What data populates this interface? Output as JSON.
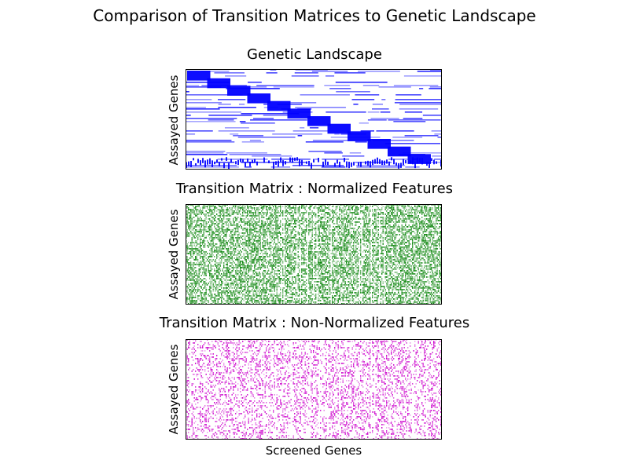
{
  "chart_data": {
    "title": "Comparison of Transition Matrices to Genetic Landscape",
    "panels": [
      {
        "type": "heatmap",
        "title": "Genetic Landscape",
        "ylabel": "Assayed Genes",
        "xlabel": "",
        "color": "#0000ff",
        "pattern": "block-diagonal with horizontal bands",
        "blocks": 12
      },
      {
        "type": "heatmap",
        "title": "Transition Matrix : Normalized Features",
        "ylabel": "Assayed Genes",
        "xlabel": "",
        "color": "#008000",
        "pattern": "dense with vertical stripes"
      },
      {
        "type": "heatmap",
        "title": "Transition Matrix : Non-Normalized Features",
        "ylabel": "Assayed Genes",
        "xlabel": "Screened Genes",
        "color": "#cc00cc",
        "pattern": "sparse with vertical stripes"
      }
    ],
    "ticks": "none"
  }
}
